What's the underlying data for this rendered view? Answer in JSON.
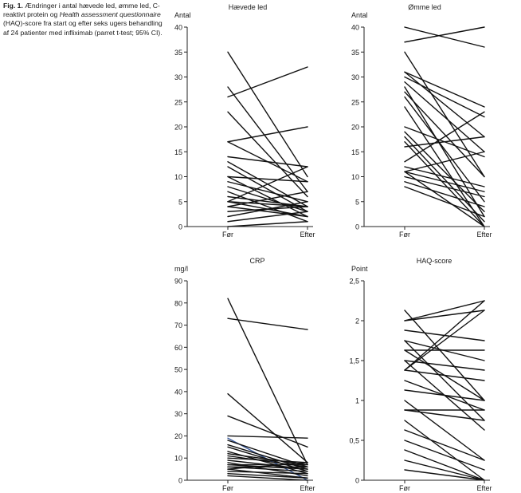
{
  "caption": {
    "fig_label": "Fig. 1.",
    "text_1": "Ændringer i antal hævede led, ømme led, C-reaktivt protein og",
    "text_italic": "Health assessment questionnaire",
    "text_2": "(HAQ)-score fra start og efter seks ugers behandling af 24 patienter med infliximab (parret t-test; 95% CI)."
  },
  "colors": {
    "line": "#111111",
    "highlight": "#3a5a9c",
    "axis": "#222222"
  },
  "chart_data": [
    {
      "type": "line",
      "title": "Hævede led",
      "ylabel": "Antal",
      "categories": [
        "Før",
        "Efter"
      ],
      "ylim": [
        0,
        40
      ],
      "yticks": [
        "0",
        "5",
        "10",
        "15",
        "20",
        "25",
        "30",
        "35",
        "40"
      ],
      "series": [
        {
          "name": "1",
          "values": [
            35,
            10
          ]
        },
        {
          "name": "2",
          "values": [
            28,
            7
          ]
        },
        {
          "name": "3",
          "values": [
            26,
            32
          ]
        },
        {
          "name": "4",
          "values": [
            23,
            6
          ]
        },
        {
          "name": "5",
          "values": [
            17,
            20
          ]
        },
        {
          "name": "6",
          "values": [
            17,
            9
          ]
        },
        {
          "name": "7",
          "values": [
            14,
            12
          ]
        },
        {
          "name": "8",
          "values": [
            13,
            4
          ]
        },
        {
          "name": "9",
          "values": [
            12,
            3
          ]
        },
        {
          "name": "10",
          "values": [
            10,
            9
          ]
        },
        {
          "name": "11",
          "values": [
            10,
            2
          ]
        },
        {
          "name": "12",
          "values": [
            9,
            5
          ]
        },
        {
          "name": "13",
          "values": [
            8,
            3
          ]
        },
        {
          "name": "14",
          "values": [
            7,
            1
          ]
        },
        {
          "name": "15",
          "values": [
            6,
            4
          ]
        },
        {
          "name": "16",
          "values": [
            5,
            2
          ]
        },
        {
          "name": "17",
          "values": [
            5,
            4
          ]
        },
        {
          "name": "18",
          "values": [
            5,
            12
          ]
        },
        {
          "name": "19",
          "values": [
            4,
            2
          ]
        },
        {
          "name": "20",
          "values": [
            4,
            7
          ]
        },
        {
          "name": "21",
          "values": [
            3,
            4
          ]
        },
        {
          "name": "22",
          "values": [
            2,
            5
          ]
        },
        {
          "name": "23",
          "values": [
            1,
            3
          ]
        },
        {
          "name": "24",
          "values": [
            0,
            1
          ]
        }
      ]
    },
    {
      "type": "line",
      "title": "Ømme led",
      "ylabel": "Antal",
      "categories": [
        "Før",
        "Efter"
      ],
      "ylim": [
        0,
        40
      ],
      "yticks": [
        "0",
        "5",
        "10",
        "15",
        "20",
        "25",
        "30",
        "35",
        "40"
      ],
      "series": [
        {
          "name": "1",
          "values": [
            40,
            36
          ]
        },
        {
          "name": "2",
          "values": [
            37,
            40
          ]
        },
        {
          "name": "3",
          "values": [
            35,
            10
          ]
        },
        {
          "name": "4",
          "values": [
            31,
            24
          ]
        },
        {
          "name": "5",
          "values": [
            31,
            18
          ]
        },
        {
          "name": "6",
          "values": [
            30,
            22
          ]
        },
        {
          "name": "7",
          "values": [
            29,
            15
          ]
        },
        {
          "name": "8",
          "values": [
            28,
            2
          ]
        },
        {
          "name": "9",
          "values": [
            27,
            10
          ]
        },
        {
          "name": "10",
          "values": [
            26,
            5
          ]
        },
        {
          "name": "11",
          "values": [
            24,
            0
          ]
        },
        {
          "name": "12",
          "values": [
            20,
            14
          ]
        },
        {
          "name": "13",
          "values": [
            19,
            3
          ]
        },
        {
          "name": "14",
          "values": [
            18,
            1
          ]
        },
        {
          "name": "15",
          "values": [
            17,
            0
          ]
        },
        {
          "name": "16",
          "values": [
            16,
            18
          ]
        },
        {
          "name": "17",
          "values": [
            13,
            23
          ]
        },
        {
          "name": "18",
          "values": [
            12,
            8
          ]
        },
        {
          "name": "19",
          "values": [
            11,
            7
          ]
        },
        {
          "name": "20",
          "values": [
            11,
            15
          ]
        },
        {
          "name": "21",
          "values": [
            10,
            6
          ]
        },
        {
          "name": "22",
          "values": [
            9,
            4
          ]
        },
        {
          "name": "23",
          "values": [
            8,
            2
          ]
        },
        {
          "name": "24",
          "values": [
            11,
            0
          ]
        }
      ]
    },
    {
      "type": "line",
      "title": "CRP",
      "ylabel": "mg/l",
      "categories": [
        "Før",
        "Efter"
      ],
      "ylim": [
        0,
        90
      ],
      "yticks": [
        "0",
        "10",
        "20",
        "30",
        "40",
        "50",
        "60",
        "70",
        "80",
        "90"
      ],
      "series": [
        {
          "name": "1",
          "values": [
            82,
            7
          ]
        },
        {
          "name": "2",
          "values": [
            73,
            68
          ]
        },
        {
          "name": "3",
          "values": [
            39,
            8
          ]
        },
        {
          "name": "4",
          "values": [
            29,
            15
          ]
        },
        {
          "name": "5",
          "values": [
            20,
            19
          ]
        },
        {
          "name": "6",
          "values": [
            19,
            0
          ],
          "highlight": true
        },
        {
          "name": "7",
          "values": [
            18,
            6
          ]
        },
        {
          "name": "8",
          "values": [
            16,
            5
          ]
        },
        {
          "name": "9",
          "values": [
            15,
            4
          ]
        },
        {
          "name": "10",
          "values": [
            13,
            3
          ]
        },
        {
          "name": "11",
          "values": [
            12,
            7
          ]
        },
        {
          "name": "12",
          "values": [
            11,
            6
          ]
        },
        {
          "name": "13",
          "values": [
            10,
            8
          ]
        },
        {
          "name": "14",
          "values": [
            9,
            5
          ]
        },
        {
          "name": "15",
          "values": [
            8,
            2
          ]
        },
        {
          "name": "16",
          "values": [
            7,
            7
          ]
        },
        {
          "name": "17",
          "values": [
            7,
            5
          ]
        },
        {
          "name": "18",
          "values": [
            6,
            6
          ]
        },
        {
          "name": "19",
          "values": [
            6,
            4
          ]
        },
        {
          "name": "20",
          "values": [
            5,
            8
          ]
        },
        {
          "name": "21",
          "values": [
            5,
            1
          ]
        },
        {
          "name": "22",
          "values": [
            4,
            3
          ]
        },
        {
          "name": "23",
          "values": [
            3,
            1
          ]
        },
        {
          "name": "24",
          "values": [
            2,
            0
          ]
        }
      ]
    },
    {
      "type": "line",
      "title": "HAQ-score",
      "ylabel": "Point",
      "categories": [
        "Før",
        "Efter"
      ],
      "ylim": [
        0,
        2.5
      ],
      "yticks": [
        "0",
        "0,5",
        "1",
        "1,5",
        "2",
        "2,5"
      ],
      "series": [
        {
          "name": "1",
          "values": [
            2.13,
            1.0
          ]
        },
        {
          "name": "2",
          "values": [
            2.0,
            2.13
          ]
        },
        {
          "name": "3",
          "values": [
            2.0,
            2.25
          ]
        },
        {
          "name": "4",
          "values": [
            1.88,
            1.75
          ]
        },
        {
          "name": "5",
          "values": [
            1.75,
            0.75
          ]
        },
        {
          "name": "6",
          "values": [
            1.63,
            1.63
          ]
        },
        {
          "name": "7",
          "values": [
            1.5,
            1.38
          ]
        },
        {
          "name": "8",
          "values": [
            1.38,
            2.25
          ]
        },
        {
          "name": "9",
          "values": [
            1.38,
            2.13
          ]
        },
        {
          "name": "10",
          "values": [
            1.38,
            1.25
          ]
        },
        {
          "name": "11",
          "values": [
            1.25,
            0.88
          ]
        },
        {
          "name": "12",
          "values": [
            1.13,
            1.0
          ]
        },
        {
          "name": "13",
          "values": [
            1.0,
            0.25
          ]
        },
        {
          "name": "14",
          "values": [
            0.88,
            0.88
          ]
        },
        {
          "name": "15",
          "values": [
            0.88,
            0.75
          ]
        },
        {
          "name": "16",
          "values": [
            0.75,
            0.0
          ]
        },
        {
          "name": "17",
          "values": [
            0.63,
            0.25
          ]
        },
        {
          "name": "18",
          "values": [
            0.5,
            0.13
          ]
        },
        {
          "name": "19",
          "values": [
            0.38,
            0.0
          ]
        },
        {
          "name": "20",
          "values": [
            0.25,
            0.0
          ]
        },
        {
          "name": "21",
          "values": [
            0.13,
            0.0
          ]
        },
        {
          "name": "22",
          "values": [
            1.75,
            1.5
          ]
        },
        {
          "name": "23",
          "values": [
            1.5,
            0.63
          ]
        },
        {
          "name": "24",
          "values": [
            1.63,
            1.0
          ]
        }
      ]
    }
  ]
}
